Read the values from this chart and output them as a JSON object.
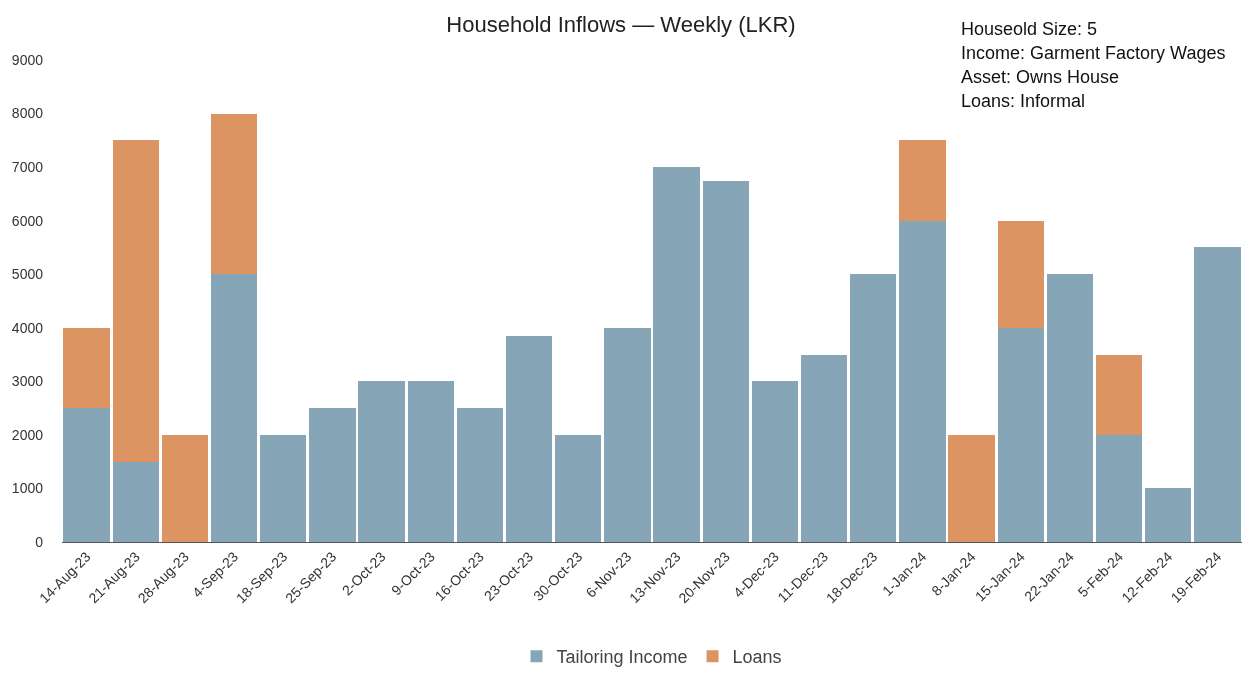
{
  "chart_data": {
    "type": "bar",
    "title": "Household Inflows — Weekly (LKR)",
    "stacked": true,
    "categories": [
      "14-Aug-23",
      "21-Aug-23",
      "28-Aug-23",
      "4-Sep-23",
      "18-Sep-23",
      "25-Sep-23",
      "2-Oct-23",
      "9-Oct-23",
      "16-Oct-23",
      "23-Oct-23",
      "30-Oct-23",
      "6-Nov-23",
      "13-Nov-23",
      "20-Nov-23",
      "4-Dec-23",
      "11-Dec-23",
      "18-Dec-23",
      "1-Jan-24",
      "8-Jan-24",
      "15-Jan-24",
      "22-Jan-24",
      "5-Feb-24",
      "12-Feb-24",
      "19-Feb-24"
    ],
    "series": [
      {
        "name": "Tailoring Income",
        "color": "#86a6b8",
        "values": [
          2500,
          1500,
          0,
          5000,
          2000,
          2500,
          3000,
          3000,
          2500,
          3850,
          2000,
          4000,
          7000,
          6750,
          3000,
          3500,
          5000,
          6000,
          0,
          4000,
          5000,
          2000,
          1000,
          5500
        ]
      },
      {
        "name": "Loans",
        "color": "#dc9562",
        "values": [
          1500,
          6000,
          2000,
          3000,
          0,
          0,
          0,
          0,
          0,
          0,
          0,
          0,
          0,
          0,
          0,
          0,
          0,
          1500,
          2000,
          2000,
          0,
          1500,
          0,
          0
        ]
      }
    ],
    "ylim": [
      0,
      9000
    ],
    "yticks": [
      0,
      1000,
      2000,
      3000,
      4000,
      5000,
      6000,
      7000,
      8000,
      9000
    ],
    "grid": false,
    "legend": "bottom",
    "annotations": [
      "Houseold Size: 5",
      "Income: Garment Factory Wages",
      "Asset: Owns House",
      "Loans: Informal"
    ]
  }
}
